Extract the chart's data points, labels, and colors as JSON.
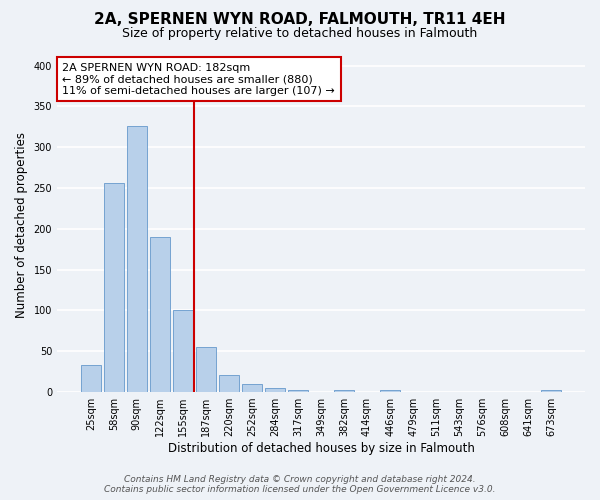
{
  "title": "2A, SPERNEN WYN ROAD, FALMOUTH, TR11 4EH",
  "subtitle": "Size of property relative to detached houses in Falmouth",
  "xlabel": "Distribution of detached houses by size in Falmouth",
  "ylabel": "Number of detached properties",
  "bar_labels": [
    "25sqm",
    "58sqm",
    "90sqm",
    "122sqm",
    "155sqm",
    "187sqm",
    "220sqm",
    "252sqm",
    "284sqm",
    "317sqm",
    "349sqm",
    "382sqm",
    "414sqm",
    "446sqm",
    "479sqm",
    "511sqm",
    "543sqm",
    "576sqm",
    "608sqm",
    "641sqm",
    "673sqm"
  ],
  "bar_values": [
    33,
    256,
    326,
    190,
    100,
    55,
    21,
    10,
    5,
    2,
    0,
    2,
    0,
    3,
    0,
    0,
    0,
    0,
    0,
    0,
    3
  ],
  "bar_color": "#b8d0ea",
  "bar_edge_color": "#6699cc",
  "vline_index": 5,
  "vline_color": "#cc0000",
  "annotation_title": "2A SPERNEN WYN ROAD: 182sqm",
  "annotation_line1": "← 89% of detached houses are smaller (880)",
  "annotation_line2": "11% of semi-detached houses are larger (107) →",
  "annotation_box_color": "#ffffff",
  "annotation_box_edge": "#cc0000",
  "ylim": [
    0,
    410
  ],
  "yticks": [
    0,
    50,
    100,
    150,
    200,
    250,
    300,
    350,
    400
  ],
  "footer_line1": "Contains HM Land Registry data © Crown copyright and database right 2024.",
  "footer_line2": "Contains public sector information licensed under the Open Government Licence v3.0.",
  "background_color": "#eef2f7",
  "grid_color": "#ffffff",
  "title_fontsize": 11,
  "subtitle_fontsize": 9,
  "axis_label_fontsize": 8.5,
  "tick_fontsize": 7,
  "annotation_fontsize": 8,
  "footer_fontsize": 6.5
}
